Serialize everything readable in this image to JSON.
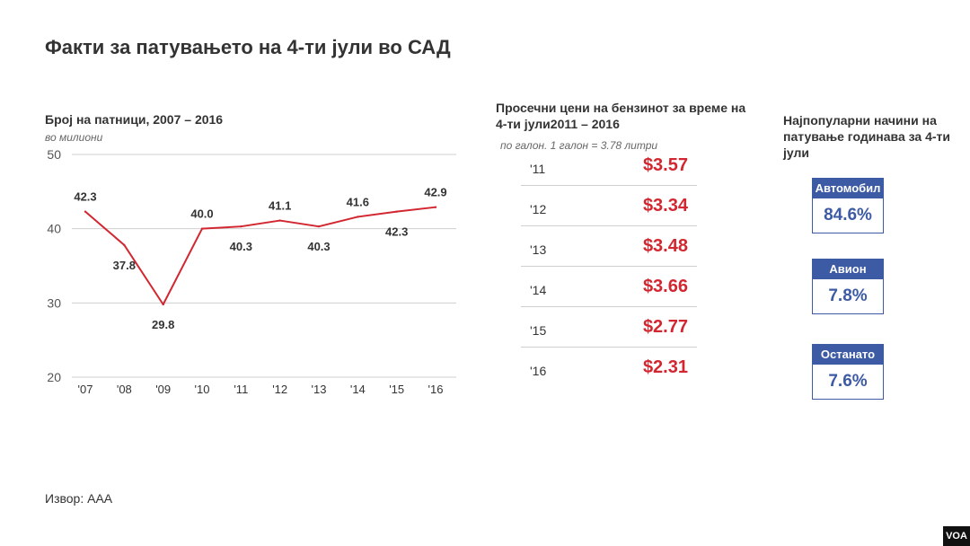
{
  "header": {
    "title": "Факти за патувањето на 4-ти јули во САД"
  },
  "chart_data": {
    "type": "line",
    "title": "Број на патници, 2007 – 2016",
    "subtitle": "во милиони",
    "categories": [
      "'07",
      "'08",
      "'09",
      "'10",
      "'11",
      "'12",
      "'13",
      "'14",
      "'15",
      "'16"
    ],
    "values": [
      42.3,
      37.8,
      29.8,
      40.0,
      40.3,
      41.1,
      40.3,
      41.6,
      42.3,
      42.9
    ],
    "labels": [
      "42.3",
      "37.8",
      "29.8",
      "40.0",
      "40.3",
      "41.1",
      "40.3",
      "41.6",
      "42.3",
      "42.9"
    ],
    "yticks": [
      20,
      30,
      40,
      50
    ],
    "ylim": [
      20,
      50
    ],
    "grid": true,
    "line_color": "#d22730"
  },
  "prices": {
    "title": "Просечни цени на бензинот за време на 4-ти јули2011 – 2016",
    "note": "по галон. 1 галон = 3.78 литри",
    "rows": [
      {
        "year": "'11",
        "price": "$3.57"
      },
      {
        "year": "'12",
        "price": "$3.34"
      },
      {
        "year": "'13",
        "price": "$3.48"
      },
      {
        "year": "'14",
        "price": "$3.66"
      },
      {
        "year": "'15",
        "price": "$2.77"
      },
      {
        "year": "'16",
        "price": "$2.31"
      }
    ]
  },
  "modes": {
    "title": "Најпопуларни начини на патување годинава за 4-ти јули",
    "items": [
      {
        "label": "Автомобил",
        "value": "84.6%"
      },
      {
        "label": "Авион",
        "value": "7.8%"
      },
      {
        "label": "Останато",
        "value": "7.6%"
      }
    ]
  },
  "footer": {
    "source": "Извор: AAA",
    "logo": "VOA"
  },
  "colors": {
    "accent_red": "#d22730",
    "accent_blue": "#3d5aa5"
  }
}
